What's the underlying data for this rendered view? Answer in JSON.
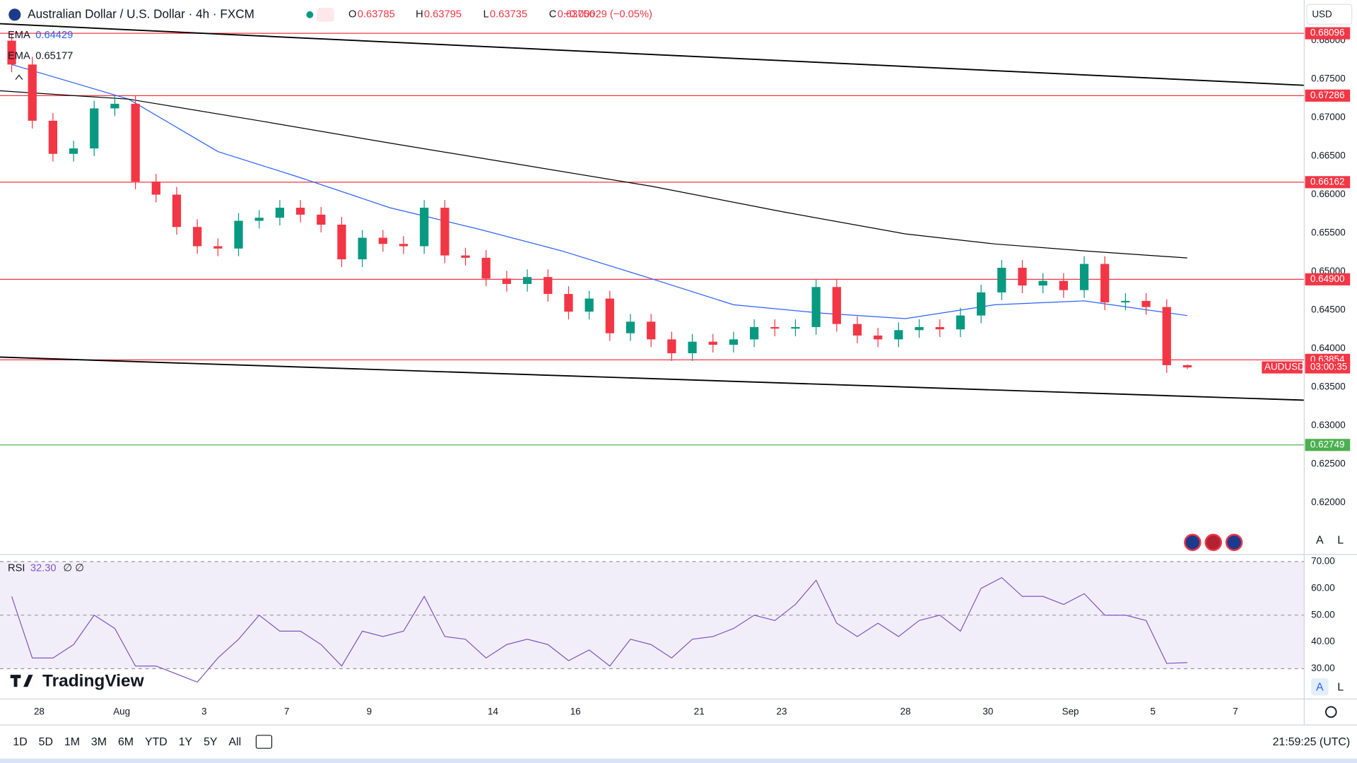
{
  "header": {
    "title": "Australian Dollar / U.S. Dollar · 4h · FXCM",
    "ohlc_letters": [
      "O",
      "H",
      "L",
      "C"
    ],
    "change": "−0.00029 (−0.05%)",
    "currency": "USD",
    "symbol": "AUDUSD",
    "countdown": "03:00:35",
    "brand": "TradingView",
    "scale_buttons": [
      "A",
      "L"
    ]
  },
  "toolbar": {
    "ranges": [
      "1D",
      "5D",
      "1M",
      "3M",
      "6M",
      "YTD",
      "1Y",
      "5Y",
      "All"
    ],
    "clock": "21:59:25 (UTC)"
  },
  "chart_data": [
    {
      "type": "candlestick",
      "up_color": "#089981",
      "down_color": "#f23645",
      "x": [
        -4,
        -1,
        2,
        5,
        8,
        11,
        14,
        17,
        20,
        23,
        26,
        29,
        32,
        35,
        38,
        41,
        44,
        47,
        50,
        53,
        56,
        59,
        62,
        65,
        68,
        71,
        74,
        77,
        80,
        83,
        86,
        89,
        92,
        95,
        98,
        101,
        104,
        107,
        110,
        113,
        116,
        119,
        122,
        125,
        128,
        131,
        134,
        137,
        140,
        143,
        146,
        149,
        152,
        155,
        158,
        161,
        164,
        167
      ],
      "open": [
        0.68,
        0.6769,
        0.6696,
        0.6653,
        0.666,
        0.6712,
        0.6718,
        0.6617,
        0.66,
        0.6558,
        0.6533,
        0.653,
        0.6566,
        0.657,
        0.6583,
        0.6574,
        0.6561,
        0.6516,
        0.6544,
        0.6536,
        0.6533,
        0.6583,
        0.6521,
        0.6518,
        0.6491,
        0.6484,
        0.6493,
        0.6471,
        0.6448,
        0.6465,
        0.642,
        0.6435,
        0.6412,
        0.6394,
        0.6409,
        0.6405,
        0.6412,
        0.6428,
        0.6426,
        0.6428,
        0.648,
        0.6432,
        0.6417,
        0.6412,
        0.6424,
        0.6428,
        0.6425,
        0.6443,
        0.6473,
        0.6505,
        0.6482,
        0.6488,
        0.6476,
        0.651,
        0.646,
        0.6462,
        0.6454,
        0.63785
      ],
      "high": [
        0.681,
        0.6779,
        0.6706,
        0.667,
        0.6722,
        0.6728,
        0.6728,
        0.6627,
        0.661,
        0.6568,
        0.6543,
        0.6576,
        0.658,
        0.6593,
        0.6593,
        0.6584,
        0.6571,
        0.6554,
        0.6554,
        0.6546,
        0.6593,
        0.6593,
        0.6531,
        0.6528,
        0.6501,
        0.6503,
        0.6503,
        0.6481,
        0.6475,
        0.6475,
        0.6445,
        0.6445,
        0.6422,
        0.6419,
        0.6419,
        0.6422,
        0.6438,
        0.6438,
        0.6438,
        0.649,
        0.649,
        0.6442,
        0.6427,
        0.6434,
        0.6438,
        0.6438,
        0.6453,
        0.6483,
        0.6515,
        0.6515,
        0.6498,
        0.6498,
        0.652,
        0.652,
        0.6472,
        0.6472,
        0.6464,
        0.63795
      ],
      "low": [
        0.6759,
        0.6686,
        0.6643,
        0.6643,
        0.665,
        0.6702,
        0.6607,
        0.659,
        0.6548,
        0.6523,
        0.652,
        0.652,
        0.6556,
        0.656,
        0.6564,
        0.6551,
        0.6506,
        0.6506,
        0.6526,
        0.6523,
        0.6523,
        0.6511,
        0.6508,
        0.6481,
        0.6474,
        0.6474,
        0.6461,
        0.6438,
        0.6438,
        0.641,
        0.641,
        0.6402,
        0.6384,
        0.6384,
        0.6395,
        0.6395,
        0.6402,
        0.6416,
        0.6416,
        0.6418,
        0.6422,
        0.6407,
        0.6402,
        0.6402,
        0.6414,
        0.6415,
        0.6415,
        0.6433,
        0.6463,
        0.6472,
        0.6472,
        0.6466,
        0.6466,
        0.645,
        0.645,
        0.6444,
        0.63685,
        0.63735
      ],
      "close": [
        0.6769,
        0.6696,
        0.6653,
        0.666,
        0.6712,
        0.6718,
        0.6617,
        0.66,
        0.6558,
        0.6533,
        0.653,
        0.6566,
        0.657,
        0.6583,
        0.6574,
        0.6561,
        0.6516,
        0.6544,
        0.6536,
        0.6533,
        0.6583,
        0.6521,
        0.6518,
        0.6491,
        0.6484,
        0.6493,
        0.6471,
        0.6448,
        0.6465,
        0.642,
        0.6435,
        0.6412,
        0.6394,
        0.6409,
        0.6405,
        0.6412,
        0.6428,
        0.6426,
        0.6428,
        0.648,
        0.6432,
        0.6417,
        0.6412,
        0.6424,
        0.6428,
        0.6425,
        0.6443,
        0.6473,
        0.6505,
        0.6482,
        0.6488,
        0.6476,
        0.651,
        0.646,
        0.6462,
        0.6454,
        0.63785,
        0.63756
      ],
      "lines": [
        {
          "name": "EMA",
          "color": "#2962ff",
          "x": [
            -4,
            7,
            13,
            26,
            38,
            51,
            64,
            76,
            89,
            101,
            114,
            126,
            139,
            152,
            167
          ],
          "values": [
            0.6769,
            0.674,
            0.6724,
            0.6656,
            0.6622,
            0.6583,
            0.6555,
            0.6527,
            0.6491,
            0.6457,
            0.6446,
            0.6439,
            0.6457,
            0.6462,
            0.64429
          ]
        },
        {
          "name": "EMA",
          "color": "#000000",
          "x": [
            -6,
            13,
            32,
            51,
            70,
            89,
            108,
            126,
            139,
            152,
            167
          ],
          "values": [
            0.6735,
            0.6724,
            0.6696,
            0.6667,
            0.6639,
            0.6611,
            0.6578,
            0.6549,
            0.6536,
            0.6527,
            0.65177
          ]
        }
      ],
      "trendlines": [
        {
          "color": "#000000",
          "x": [
            -5.7,
            184
          ],
          "values": [
            0.6822,
            0.6742
          ]
        },
        {
          "color": "#000000",
          "x": [
            -5.7,
            184
          ],
          "values": [
            0.6389,
            0.6333
          ]
        }
      ],
      "levels": {
        "values": [
          0.68096,
          0.67286,
          0.66162,
          0.649,
          0.63854,
          0.62749
        ],
        "value_labels": [
          "0.68096",
          "0.67286",
          "0.66162",
          "0.64900",
          "0.63854",
          "0.62749"
        ],
        "colors": [
          "#f23645",
          "#f23645",
          "#f23645",
          "#f23645",
          "#f23645",
          "#4caf50"
        ]
      },
      "xlim": [
        -5.7,
        184
      ],
      "xticks": [
        {
          "value": 0,
          "label": "28"
        },
        {
          "value": 12,
          "label": "Aug"
        },
        {
          "value": 24,
          "label": "3"
        },
        {
          "value": 36,
          "label": "7"
        },
        {
          "value": 48,
          "label": "9"
        },
        {
          "value": 66,
          "label": "14"
        },
        {
          "value": 78,
          "label": "16"
        },
        {
          "value": 96,
          "label": "21"
        },
        {
          "value": 108,
          "label": "23"
        },
        {
          "value": 126,
          "label": "28"
        },
        {
          "value": 138,
          "label": "30"
        },
        {
          "value": 150,
          "label": "Sep"
        },
        {
          "value": 162,
          "label": "5"
        },
        {
          "value": 174,
          "label": "7"
        }
      ],
      "ylim": [
        0.61337,
        0.68528
      ],
      "yticks": [
        {
          "value": 0.62,
          "label": "0.62000"
        },
        {
          "value": 0.625,
          "label": "0.62500"
        },
        {
          "value": 0.63,
          "label": "0.63000"
        },
        {
          "value": 0.635,
          "label": "0.63500"
        },
        {
          "value": 0.64,
          "label": "0.64000"
        },
        {
          "value": 0.645,
          "label": "0.64500"
        },
        {
          "value": 0.65,
          "label": "0.65000"
        },
        {
          "value": 0.655,
          "label": "0.65500"
        },
        {
          "value": 0.66,
          "label": "0.66000"
        },
        {
          "value": 0.665,
          "label": "0.66500"
        },
        {
          "value": 0.67,
          "label": "0.67000"
        },
        {
          "value": 0.675,
          "label": "0.67500"
        },
        {
          "value": 0.68,
          "label": "0.68000"
        }
      ]
    },
    {
      "type": "line",
      "name": "RSI",
      "legend_value": "32.30",
      "legend_extra": "∅ ∅",
      "color": "#7e57c2",
      "band_color": "#7e57c2",
      "x": [
        -4,
        -1,
        2,
        5,
        8,
        11,
        14,
        17,
        20,
        23,
        26,
        29,
        32,
        35,
        38,
        41,
        44,
        47,
        50,
        53,
        56,
        59,
        62,
        65,
        68,
        71,
        74,
        77,
        80,
        83,
        86,
        89,
        92,
        95,
        98,
        101,
        104,
        107,
        110,
        113,
        116,
        119,
        122,
        125,
        128,
        131,
        134,
        137,
        140,
        143,
        146,
        149,
        152,
        155,
        158,
        161,
        164,
        167
      ],
      "values": [
        57,
        34,
        34,
        39,
        50,
        45,
        31,
        31,
        28,
        25,
        34,
        41,
        50,
        44,
        44,
        39,
        31,
        44,
        42,
        44,
        57,
        42,
        41,
        34,
        39,
        41,
        39,
        33,
        37,
        31,
        41,
        39,
        34,
        41,
        42,
        45,
        50,
        48,
        54,
        63,
        47,
        42,
        47,
        42,
        48,
        50,
        44,
        60,
        64,
        57,
        57,
        54,
        58,
        50,
        50,
        48,
        32,
        32.3
      ],
      "band": [
        30,
        70
      ],
      "guides": [
        30,
        50,
        70
      ],
      "ylim": [
        18.7,
        72.3
      ],
      "yticks": [
        {
          "value": 30,
          "label": "30.00"
        },
        {
          "value": 40,
          "label": "40.00"
        },
        {
          "value": 50,
          "label": "50.00"
        },
        {
          "value": 60,
          "label": "60.00"
        },
        {
          "value": 70,
          "label": "70.00"
        }
      ]
    }
  ]
}
